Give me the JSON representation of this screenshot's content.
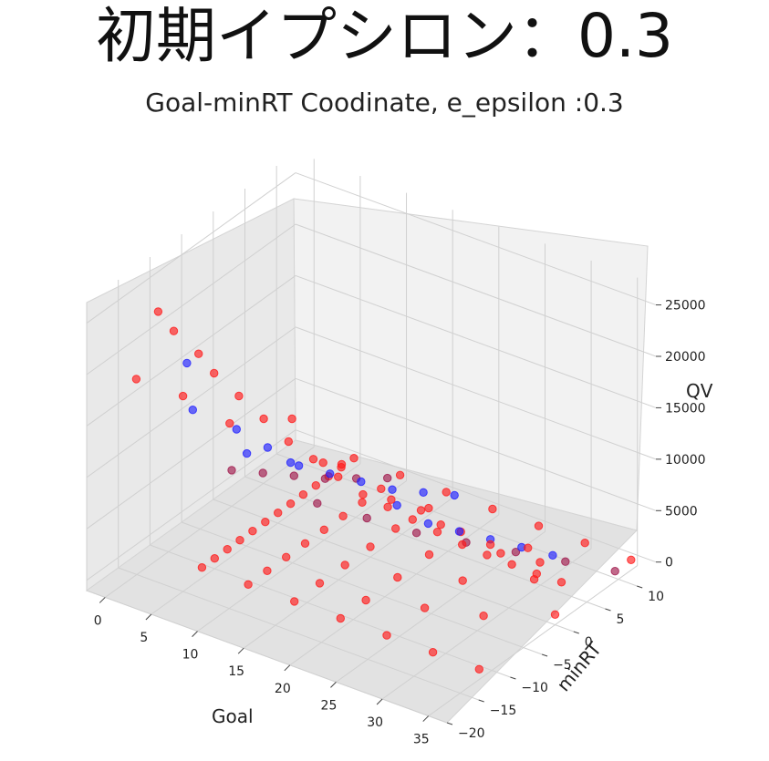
{
  "header": {
    "title": "初期イプシロン：0.3"
  },
  "chart_data": {
    "type": "scatter",
    "projection": "3d",
    "title": "Goal-minRT Coodinate, e_epsilon :0.3",
    "xlabel": "Goal",
    "ylabel": "minRT",
    "zlabel": "QV",
    "xlim": [
      -2,
      37
    ],
    "ylim": [
      -20,
      13
    ],
    "zlim": [
      -1000,
      27000
    ],
    "x_ticks": [
      0,
      5,
      10,
      15,
      20,
      25,
      30,
      35
    ],
    "y_ticks": [
      -20,
      -15,
      -10,
      -5,
      0,
      5,
      10
    ],
    "z_ticks": [
      0,
      5000,
      10000,
      15000,
      20000,
      25000
    ],
    "x_tick_labels": [
      "0",
      "5",
      "10",
      "15",
      "20",
      "25",
      "30",
      "35"
    ],
    "y_tick_labels": [
      "−20",
      "−15",
      "−10",
      "−5",
      "0",
      "5",
      "10"
    ],
    "z_tick_labels": [
      "0",
      "5000",
      "10000",
      "15000",
      "20000",
      "25000"
    ],
    "grid": true,
    "series": [
      {
        "color": "#ff1a1a",
        "description": "red points: dense triangular fan near QV 0 spanning Goal 5–35 and minRT −12–12, plus upper ridge rising to ~26000 at low minRT"
      },
      {
        "color": "#2020ff",
        "description": "blue points: scattered along the ridge, QV ~3000–20000"
      },
      {
        "color": "#a0184c",
        "description": "purple (overlapping red/blue) points along the lower band"
      }
    ],
    "fan_points": [
      [
        5,
        12,
        0
      ],
      [
        5,
        10,
        0
      ],
      [
        5,
        8,
        0
      ],
      [
        5,
        6,
        0
      ],
      [
        5,
        4,
        0
      ],
      [
        5,
        2,
        0
      ],
      [
        5,
        0,
        0
      ],
      [
        5,
        -2,
        0
      ],
      [
        5,
        -4,
        0
      ],
      [
        5,
        -6,
        0
      ],
      [
        5,
        -8,
        0
      ],
      [
        5,
        -10,
        0
      ],
      [
        5,
        -12,
        0
      ],
      [
        10,
        12,
        0
      ],
      [
        10,
        9,
        0
      ],
      [
        10,
        6,
        0
      ],
      [
        10,
        3,
        0
      ],
      [
        10,
        0,
        0
      ],
      [
        10,
        -3,
        0
      ],
      [
        10,
        -6,
        0
      ],
      [
        10,
        -9,
        0
      ],
      [
        10,
        -12,
        0
      ],
      [
        15,
        12,
        0
      ],
      [
        15,
        8,
        0
      ],
      [
        15,
        4,
        0
      ],
      [
        15,
        0,
        0
      ],
      [
        15,
        -4,
        0
      ],
      [
        15,
        -8,
        0
      ],
      [
        15,
        -12,
        0
      ],
      [
        20,
        12,
        0
      ],
      [
        20,
        7,
        0
      ],
      [
        20,
        2,
        0
      ],
      [
        20,
        -3,
        0
      ],
      [
        20,
        -8,
        0
      ],
      [
        20,
        -12,
        0
      ],
      [
        25,
        12,
        0
      ],
      [
        25,
        6,
        0
      ],
      [
        25,
        0,
        0
      ],
      [
        25,
        -6,
        0
      ],
      [
        25,
        -12,
        0
      ],
      [
        30,
        12,
        0
      ],
      [
        30,
        4,
        0
      ],
      [
        30,
        -4,
        0
      ],
      [
        30,
        -12,
        0
      ],
      [
        35,
        12,
        0
      ],
      [
        35,
        0,
        0
      ],
      [
        35,
        -12,
        0
      ]
    ],
    "ridge_points": [
      [
        3,
        -16,
        26000
      ],
      [
        4,
        -15,
        24000
      ],
      [
        6,
        -14,
        22000
      ],
      [
        7,
        -13,
        20000
      ],
      [
        9,
        -12,
        18000
      ],
      [
        11,
        -11,
        16000
      ],
      [
        13,
        -10,
        14000
      ],
      [
        15,
        -9,
        12500
      ],
      [
        17,
        -8,
        11000
      ],
      [
        19,
        -7,
        9500
      ],
      [
        21,
        -6,
        8500
      ],
      [
        23,
        -5,
        7500
      ],
      [
        25,
        -4,
        6500
      ],
      [
        27,
        -3,
        5500
      ],
      [
        29,
        -2,
        4700
      ],
      [
        31,
        -1,
        4000
      ],
      [
        33,
        0,
        3300
      ],
      [
        35,
        1,
        2700
      ],
      [
        12,
        -8,
        15000
      ],
      [
        16,
        -6,
        11000
      ],
      [
        20,
        -4,
        8000
      ],
      [
        24,
        -2,
        6000
      ],
      [
        28,
        0,
        4500
      ],
      [
        32,
        2,
        3200
      ],
      [
        2,
        -18,
        20000
      ],
      [
        5,
        -15,
        18000
      ],
      [
        8,
        -12,
        15000
      ],
      [
        14,
        -6,
        10500
      ],
      [
        22,
        -1,
        6500
      ],
      [
        30,
        3,
        3500
      ]
    ],
    "blue_points": [
      [
        2,
        -10,
        18000
      ],
      [
        4,
        -12,
        15000
      ],
      [
        6,
        -8,
        12000
      ],
      [
        8,
        -6,
        10000
      ],
      [
        10,
        -4,
        8000
      ],
      [
        12,
        -2,
        7000
      ],
      [
        14,
        0,
        6000
      ],
      [
        16,
        2,
        5000
      ],
      [
        18,
        4,
        4500
      ],
      [
        20,
        6,
        4000
      ],
      [
        22,
        -6,
        9000
      ],
      [
        24,
        -4,
        7000
      ],
      [
        26,
        -2,
        6000
      ],
      [
        28,
        0,
        5000
      ],
      [
        30,
        2,
        4000
      ],
      [
        32,
        4,
        3000
      ],
      [
        3,
        -2,
        6000
      ],
      [
        5,
        2,
        4000
      ]
    ],
    "purple_points": [
      [
        0,
        0,
        2500
      ],
      [
        2,
        2,
        2000
      ],
      [
        4,
        4,
        1500
      ],
      [
        6,
        6,
        1000
      ],
      [
        8,
        8,
        800
      ],
      [
        10,
        10,
        600
      ],
      [
        12,
        -4,
        5000
      ],
      [
        16,
        -2,
        4000
      ],
      [
        20,
        0,
        3000
      ],
      [
        24,
        2,
        2500
      ],
      [
        28,
        4,
        2000
      ],
      [
        32,
        6,
        1500
      ],
      [
        36,
        8,
        1000
      ]
    ]
  }
}
